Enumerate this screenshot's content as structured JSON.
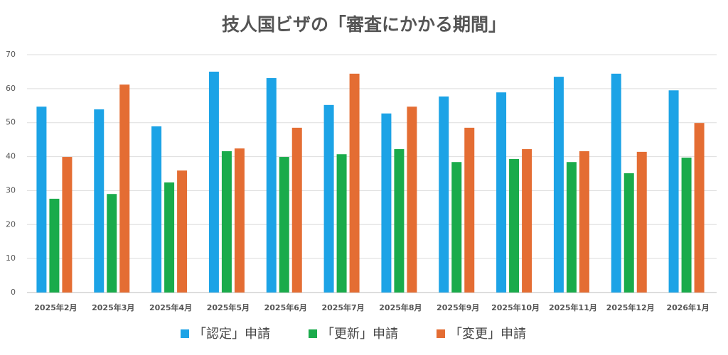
{
  "chart_data": {
    "type": "bar",
    "title": "技人国ビザの「審査にかかる期間」",
    "categories": [
      "2025年2月",
      "2025年3月",
      "2025年4月",
      "2025年5月",
      "2025年6月",
      "2025年7月",
      "2025年8月",
      "2025年9月",
      "2025年10月",
      "2025年11月",
      "2025年12月",
      "2026年1月"
    ],
    "series": [
      {
        "name": "「認定」申請",
        "color": "#1ca3e6",
        "values": [
          54.7,
          53.9,
          48.9,
          65,
          63.1,
          55.2,
          52.7,
          57.7,
          58.9,
          63.5,
          64.4,
          59.5
        ]
      },
      {
        "name": "「更新」申請",
        "color": "#1aab4b",
        "values": [
          27.6,
          29,
          32.4,
          41.6,
          39.9,
          40.7,
          42.2,
          38.4,
          39.3,
          38.4,
          35.1,
          39.7
        ]
      },
      {
        "name": "「変更」申請",
        "color": "#e46d33",
        "values": [
          39.9,
          61.2,
          35.9,
          42.4,
          48.5,
          64.4,
          54.7,
          48.5,
          42.2,
          41.6,
          41.4,
          49.9
        ]
      }
    ],
    "ylim": [
      0,
      70
    ],
    "yticks": [
      0,
      10,
      20,
      30,
      40,
      50,
      60,
      70
    ],
    "grid": true,
    "legend": "bottom"
  }
}
